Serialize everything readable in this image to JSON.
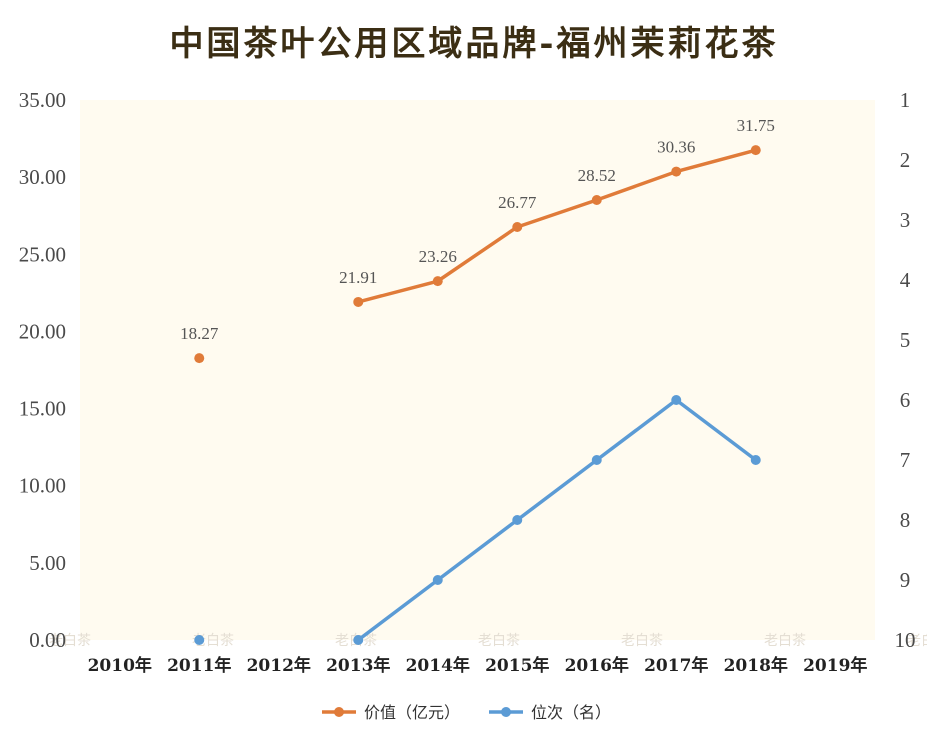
{
  "chart_data": {
    "type": "line",
    "title": "中国茶叶公用区域品牌-福州茉莉花茶",
    "categories": [
      "2010年",
      "2011年",
      "2012年",
      "2013年",
      "2014年",
      "2015年",
      "2016年",
      "2017年",
      "2018年",
      "2019年"
    ],
    "y_left": {
      "ticks": [
        "0.00",
        "5.00",
        "10.00",
        "15.00",
        "20.00",
        "25.00",
        "30.00",
        "35.00"
      ],
      "range": [
        0,
        35
      ]
    },
    "y_right": {
      "ticks": [
        "1",
        "2",
        "3",
        "4",
        "5",
        "6",
        "7",
        "8",
        "9",
        "10"
      ],
      "range": [
        1,
        10
      ],
      "reversed": true
    },
    "series": [
      {
        "name": "价值（亿元）",
        "axis": "left",
        "color": "#e07b39",
        "values": [
          null,
          18.27,
          null,
          21.91,
          23.26,
          26.77,
          28.52,
          30.36,
          31.75,
          null
        ],
        "labels": [
          null,
          "18.27",
          null,
          "21.91",
          "23.26",
          "26.77",
          "28.52",
          "30.36",
          "31.75",
          null
        ]
      },
      {
        "name": "位次（名）",
        "axis": "right",
        "color": "#5b9bd5",
        "values": [
          null,
          10,
          null,
          10,
          9,
          8,
          7,
          6,
          7,
          null
        ]
      }
    ],
    "grid": false,
    "legend_position": "bottom",
    "plot_background": "#fffbf0"
  },
  "watermark": "老白茶"
}
